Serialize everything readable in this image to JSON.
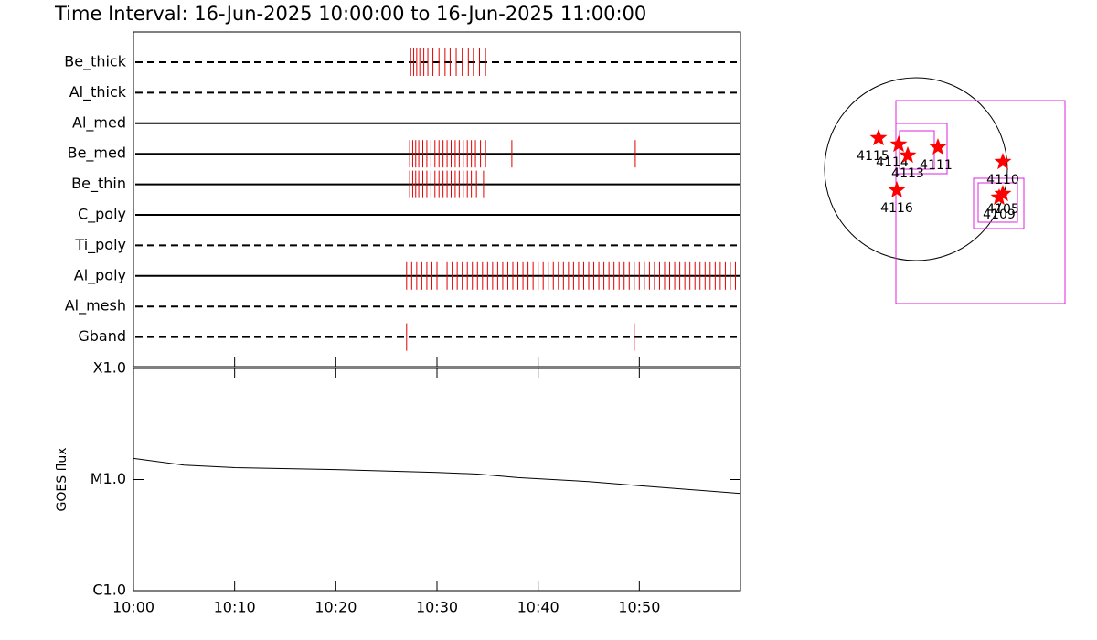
{
  "title": "Time Interval: 16-Jun-2025 10:00:00 to 16-Jun-2025 11:00:00",
  "chart_data": [
    {
      "type": "timeline",
      "categories": [
        "Be_thick",
        "Al_thick",
        "Al_med",
        "Be_med",
        "Be_thin",
        "C_poly",
        "Ti_poly",
        "Al_poly",
        "Al_mesh",
        "Gband"
      ],
      "line_styles": [
        "dashed",
        "dashed",
        "solid",
        "solid",
        "solid",
        "solid",
        "dashed",
        "solid",
        "dashed",
        "dashed"
      ],
      "color": "#e00000",
      "xlim": [
        0,
        60
      ],
      "events": [
        [
          27.4,
          27.7,
          28.0,
          28.3,
          28.7,
          29.1,
          29.6,
          30.2,
          30.8,
          31.3,
          31.9,
          32.5,
          33.1,
          33.6,
          34.2,
          34.8
        ],
        [],
        [],
        [
          27.3,
          27.6,
          27.9,
          28.2,
          28.6,
          29.0,
          29.4,
          29.8,
          30.2,
          30.6,
          31.0,
          31.4,
          31.8,
          32.2,
          32.6,
          33.0,
          33.4,
          33.8,
          34.3,
          34.8,
          37.4,
          49.6
        ],
        [
          27.3,
          27.6,
          27.9,
          28.2,
          28.6,
          29.0,
          29.4,
          29.8,
          30.2,
          30.6,
          31.0,
          31.4,
          31.8,
          32.2,
          32.6,
          33.0,
          33.4,
          33.9,
          34.6
        ],
        [],
        [],
        [
          27.0,
          27.5,
          28.0,
          28.5,
          29.0,
          29.5,
          30.0,
          30.5,
          31.0,
          31.5,
          32.0,
          32.5,
          33.0,
          33.5,
          34.0,
          34.5,
          35.0,
          35.5,
          36.0,
          36.5,
          37.0,
          37.5,
          38.0,
          38.5,
          39.0,
          39.5,
          40.0,
          40.5,
          41.0,
          41.5,
          42.0,
          42.5,
          43.0,
          43.5,
          44.0,
          44.5,
          45.0,
          45.5,
          46.0,
          46.5,
          47.0,
          47.5,
          48.0,
          48.5,
          49.0,
          49.5,
          50.0,
          50.5,
          51.0,
          51.5,
          52.0,
          52.5,
          53.0,
          53.5,
          54.0,
          54.5,
          55.0,
          55.5,
          56.0,
          56.5,
          57.0,
          57.5,
          58.0,
          58.5,
          59.0,
          59.5
        ],
        [],
        [
          27.0,
          49.5
        ]
      ]
    },
    {
      "type": "line",
      "ylabel": "GOES flux",
      "x": [
        0,
        5,
        10,
        20,
        30,
        34,
        38,
        45,
        50,
        60
      ],
      "values": [
        1.55e-05,
        1.35e-05,
        1.28e-05,
        1.23e-05,
        1.16e-05,
        1.12e-05,
        1.04e-05,
        9.6e-06,
        8.8e-06,
        7.5e-06
      ],
      "color": "#000000",
      "log_scale": true,
      "xlim": [
        0,
        60
      ],
      "xticks": [
        {
          "value": 0,
          "label": "10:00"
        },
        {
          "value": 10,
          "label": "10:10"
        },
        {
          "value": 20,
          "label": "10:20"
        },
        {
          "value": 30,
          "label": "10:30"
        },
        {
          "value": 40,
          "label": "10:40"
        },
        {
          "value": 50,
          "label": "10:50"
        }
      ],
      "ylim": [
        1e-06,
        0.0001
      ],
      "yticks": [
        {
          "value": 1e-06,
          "label": "C1.0"
        },
        {
          "value": 1e-05,
          "label": "M1.0"
        },
        {
          "value": 0.0001,
          "label": "X1.0"
        }
      ]
    }
  ],
  "map": {
    "labels": [
      "4115",
      "4114",
      "4113",
      "4111",
      "4110",
      "4116",
      "4105",
      "4109"
    ]
  }
}
